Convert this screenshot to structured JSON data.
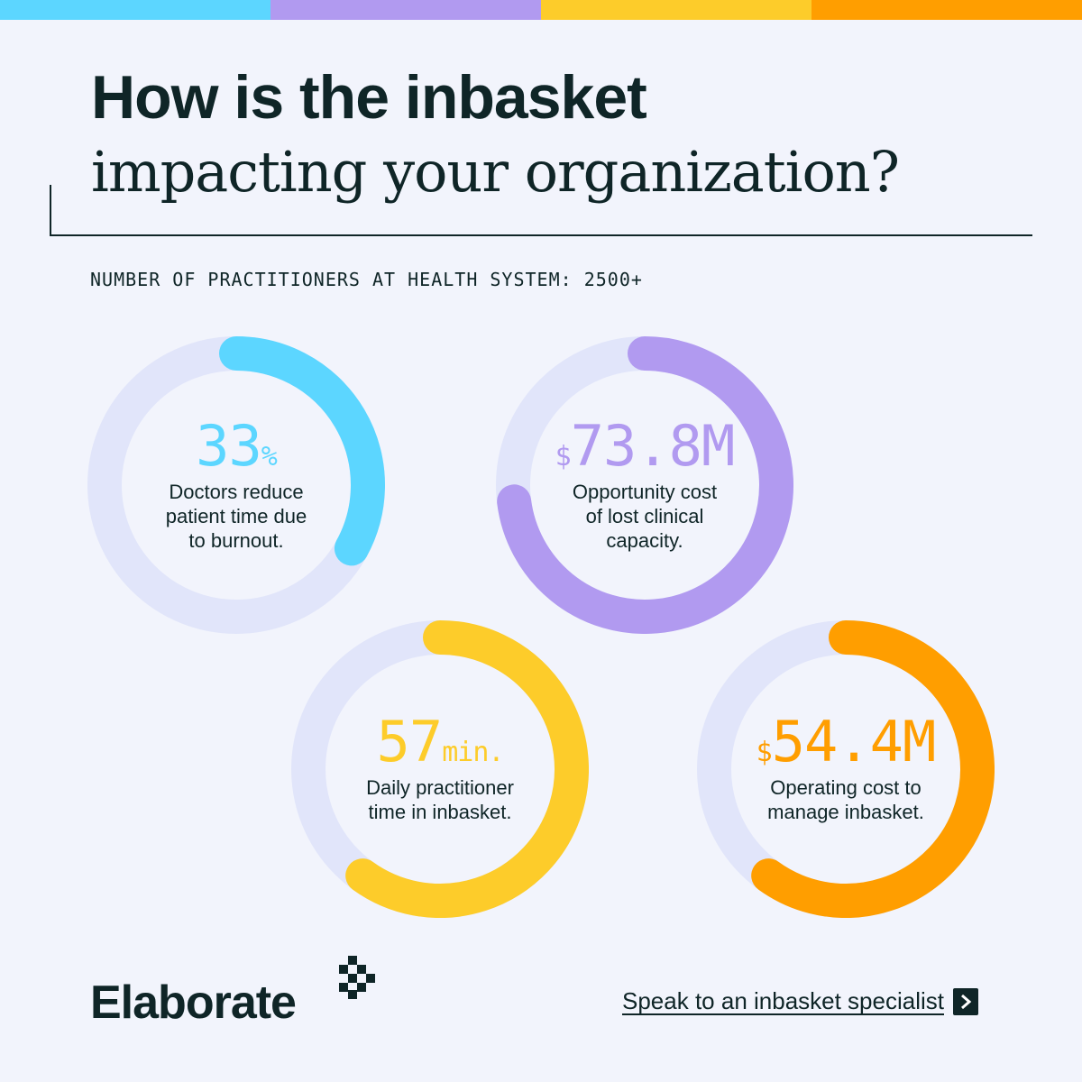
{
  "colors": {
    "cyan": "#5cd6ff",
    "purple": "#b19af0",
    "yellow": "#fdcc2a",
    "orange": "#ff9e00",
    "ring_track": "#e1e5fa",
    "ink": "#0f2527"
  },
  "top_bar": [
    "#5cd6ff",
    "#b19af0",
    "#fdcc2a",
    "#ff9e00"
  ],
  "title": {
    "line1": "How is the inbasket",
    "line2": "impacting your organization?"
  },
  "subhead": "NUMBER OF PRACTITIONERS AT HEALTH SYSTEM: 2500+",
  "stats": [
    {
      "prefix": "",
      "value": "33",
      "suffix": "%",
      "description": "Doctors reduce\npatient time due\nto burnout.",
      "color": "#5cd6ff",
      "fill_fraction": 0.33
    },
    {
      "prefix": "$",
      "value": "73.8M",
      "suffix": "",
      "description": "Opportunity cost\nof lost clinical\ncapacity.",
      "color": "#b19af0",
      "fill_fraction": 0.73
    },
    {
      "prefix": "",
      "value": "57",
      "suffix": "min.",
      "description": "Daily practitioner\ntime in inbasket.",
      "color": "#fdcc2a",
      "fill_fraction": 0.6
    },
    {
      "prefix": "$",
      "value": "54.4M",
      "suffix": "",
      "description": "Operating cost to\nmanage inbasket.",
      "color": "#ff9e00",
      "fill_fraction": 0.6
    }
  ],
  "logo": {
    "text": "Elaborate"
  },
  "cta": {
    "label": "Speak to an inbasket specialist",
    "icon": "chevron-right-icon"
  }
}
